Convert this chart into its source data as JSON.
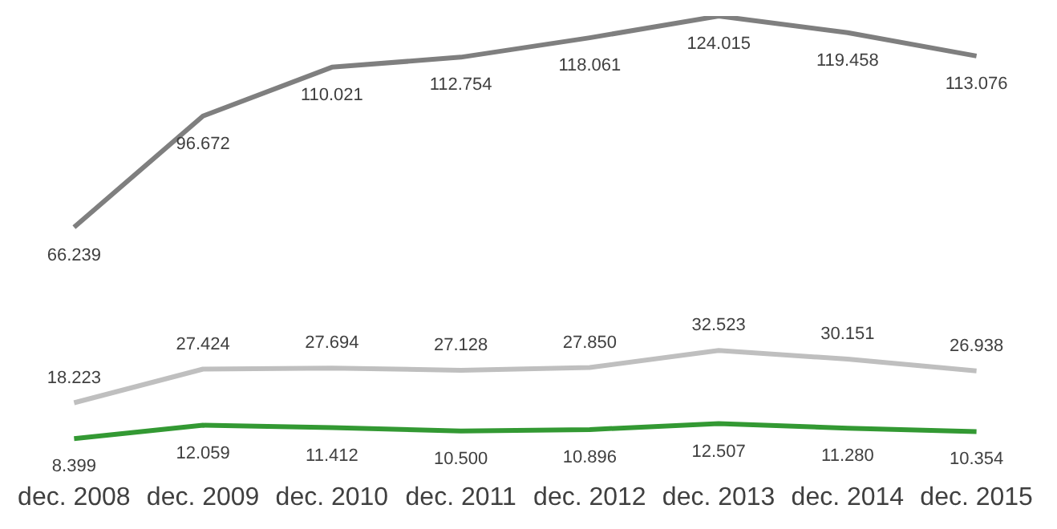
{
  "chart_data": {
    "type": "line",
    "categories": [
      "dec. 2008",
      "dec. 2009",
      "dec. 2010",
      "dec. 2011",
      "dec. 2012",
      "dec. 2013",
      "dec. 2014",
      "dec. 2015"
    ],
    "tick_labels": "x",
    "grid": false,
    "legend": false,
    "marker": "none",
    "line_style": "solid",
    "series": [
      {
        "color": "#7f7f7f",
        "values": [
          66239,
          96672,
          110021,
          112754,
          118061,
          124015,
          119458,
          113076
        ],
        "value_labels": [
          "66.239",
          "96.672",
          "110.021",
          "112.754",
          "118.061",
          "124.015",
          "119.458",
          "113.076"
        ]
      },
      {
        "color": "#bfbfbf",
        "values": [
          18223,
          27424,
          27694,
          27128,
          27850,
          32523,
          30151,
          26938
        ],
        "value_labels": [
          "18.223",
          "27.424",
          "27.694",
          "27.128",
          "27.850",
          "32.523",
          "30.151",
          "26.938"
        ]
      },
      {
        "color": "#339933",
        "values": [
          8399,
          12059,
          11412,
          10500,
          10896,
          12507,
          11280,
          10354
        ],
        "value_labels": [
          "8.399",
          "12.059",
          "11.412",
          "10.500",
          "10.896",
          "12.507",
          "11.280",
          "10.354"
        ]
      }
    ]
  }
}
